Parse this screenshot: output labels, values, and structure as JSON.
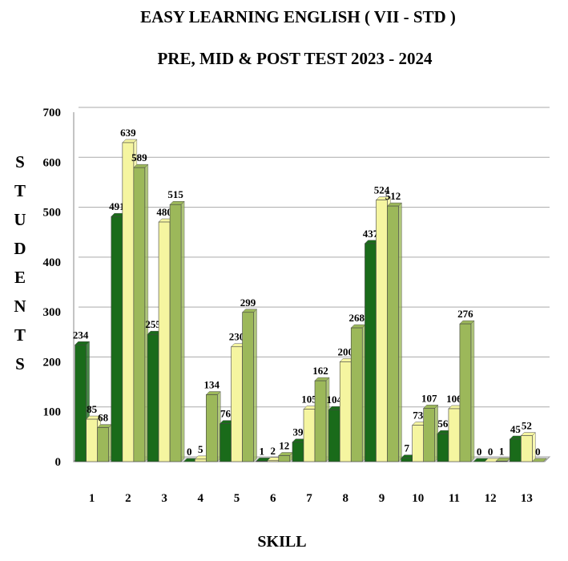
{
  "chart_data": {
    "type": "bar",
    "title": "EASY LEARNING ENGLISH ( VII - STD )",
    "subtitle": "PRE, MID & POST TEST  2023 - 2024",
    "y_label": "STUDENTS",
    "x_label": "SKILL",
    "categories": [
      "1",
      "2",
      "3",
      "4",
      "5",
      "6",
      "7",
      "8",
      "9",
      "10",
      "11",
      "12",
      "13"
    ],
    "series": [
      {
        "color": "#1a6b1a",
        "values": [
          234,
          491,
          255,
          0,
          76,
          1,
          39,
          104,
          437,
          7,
          56,
          0,
          45
        ]
      },
      {
        "color": "#f5f5a0",
        "values": [
          85,
          639,
          480,
          5,
          230,
          2,
          105,
          200,
          524,
          73,
          106,
          0,
          52
        ]
      },
      {
        "color": "#9cb85a",
        "values": [
          68,
          589,
          515,
          134,
          299,
          12,
          162,
          268,
          512,
          107,
          276,
          1,
          0
        ]
      }
    ],
    "ylim": [
      0,
      700
    ],
    "yticks": [
      0,
      100,
      200,
      300,
      400,
      500,
      600,
      700
    ],
    "grid": true
  }
}
